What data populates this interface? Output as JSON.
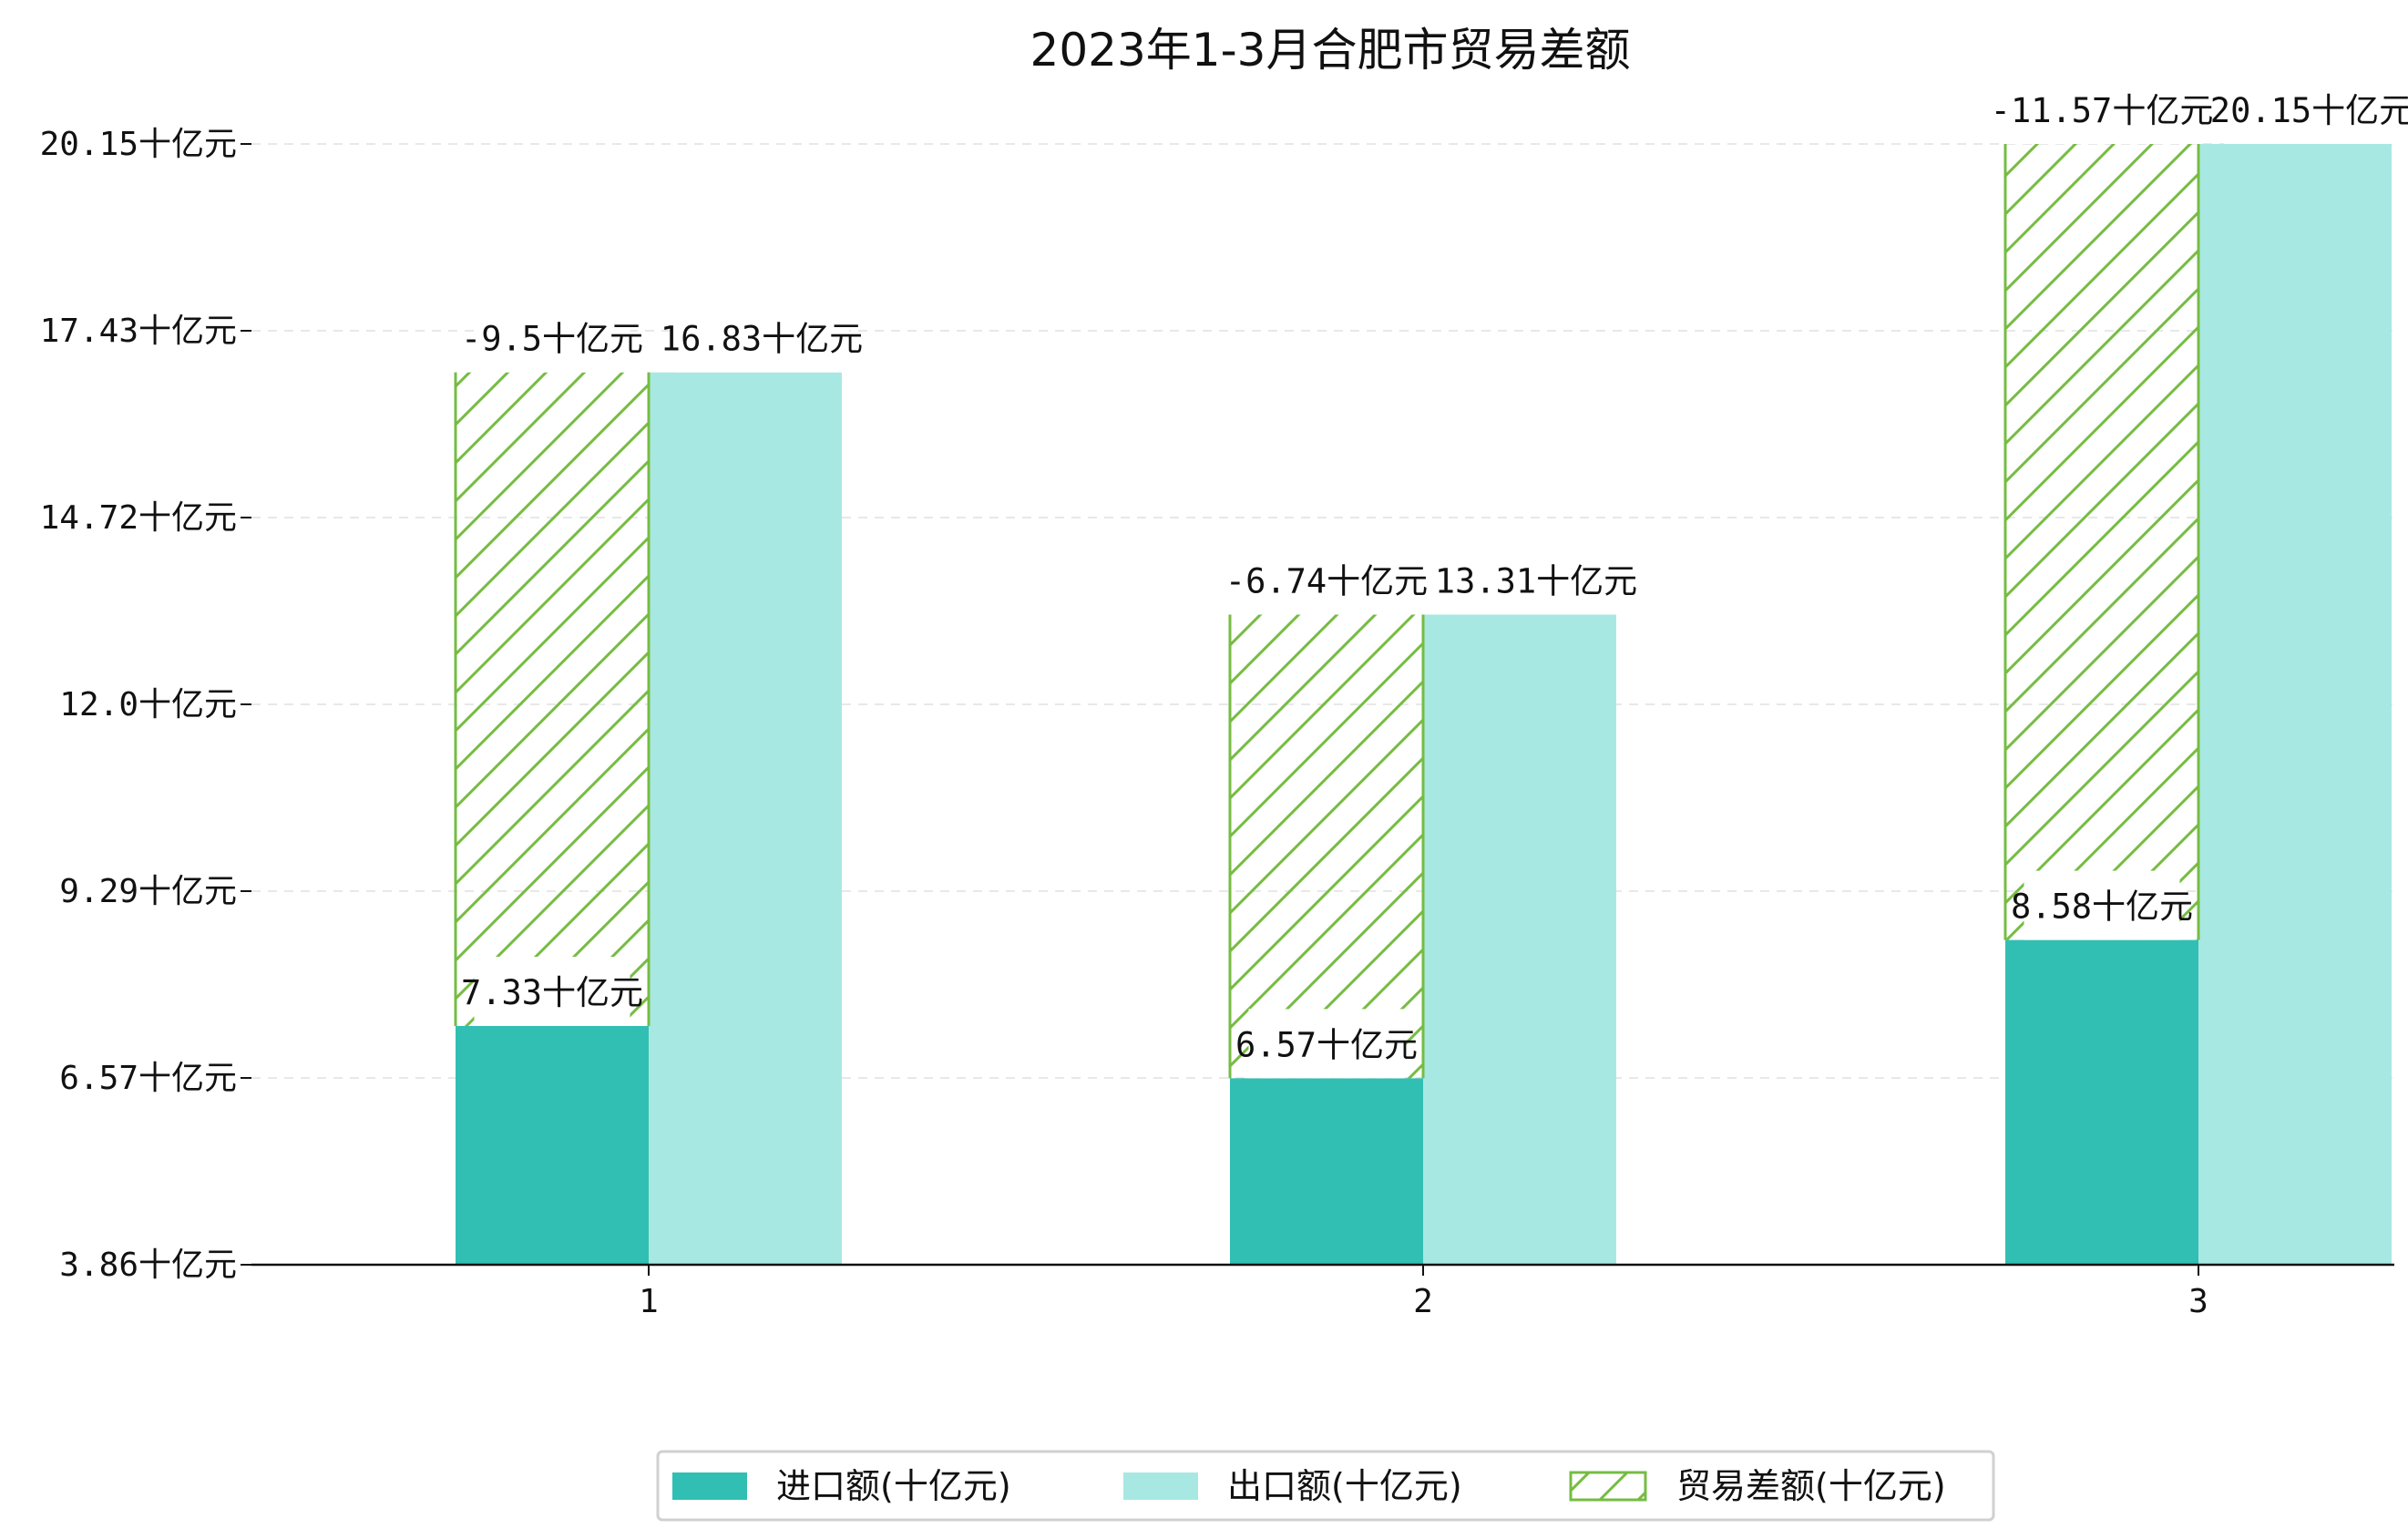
{
  "chart_data": {
    "type": "bar",
    "title": "2023年1-3月合肥市贸易差额",
    "categories": [
      "1",
      "2",
      "3"
    ],
    "unit_suffix": "十亿元",
    "y_ticks": [
      "3.86十亿元",
      "6.57十亿元",
      "9.29十亿元",
      "12.0十亿元",
      "14.72十亿元",
      "17.43十亿元",
      "20.15十亿元"
    ],
    "ylim": [
      3.86,
      20.15
    ],
    "grid": "y-dashed",
    "legend_position": "bottom-center",
    "series": [
      {
        "name": "进口额(十亿元)",
        "values": [
          7.33,
          6.57,
          8.58
        ],
        "labels": [
          "7.33十亿元",
          "6.57十亿元",
          "8.58十亿元"
        ],
        "color": "#31bfb3"
      },
      {
        "name": "出口额(十亿元)",
        "values": [
          16.83,
          13.31,
          20.15
        ],
        "labels": [
          "16.83十亿元",
          "13.31十亿元",
          "20.15十亿元"
        ],
        "color": "#a8e8e3"
      },
      {
        "name": "贸易差额(十亿元)",
        "values": [
          -9.5,
          -6.74,
          -11.57
        ],
        "labels": [
          "-9.5十亿元",
          "-6.74十亿元",
          "-11.57十亿元"
        ],
        "color": "#76bc43"
      }
    ]
  }
}
